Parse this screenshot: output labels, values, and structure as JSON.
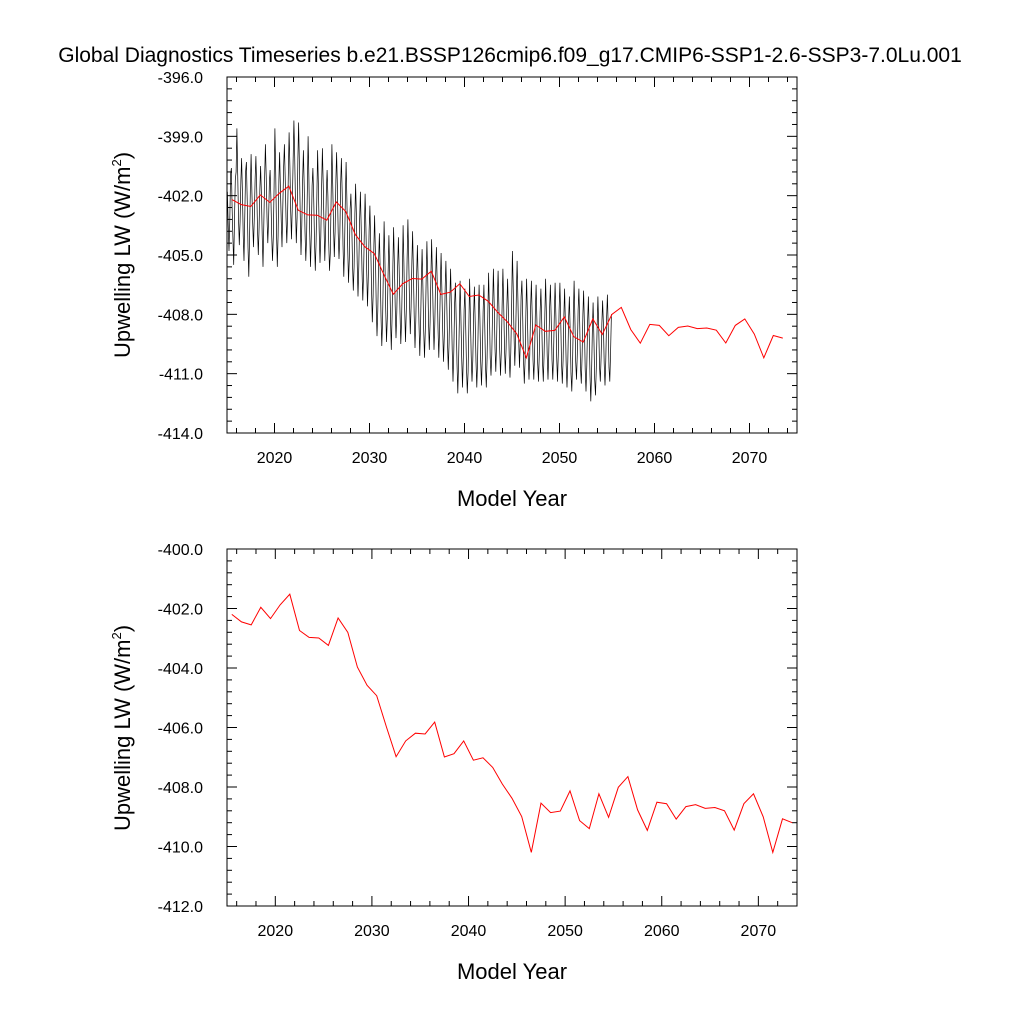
{
  "title": "Global Diagnostics Timeseries b.e21.BSSP126cmip6.f09_g17.CMIP6-SSP1-2.6-SSP3-7.0Lu.001",
  "colors": {
    "monthly": "#000000",
    "annual": "#ff0000",
    "axis": "#000000"
  },
  "chart_data": [
    {
      "type": "line",
      "xlabel": "Model Year",
      "ylabel": {
        "base": "Upwelling LW (W/m",
        "sup": "2",
        "tail": ")"
      },
      "xlim": [
        2015,
        2075
      ],
      "ylim": [
        -414.0,
        -396.0
      ],
      "x_ticks": [
        {
          "value": 2020,
          "label": "2020"
        },
        {
          "value": 2030,
          "label": "2030"
        },
        {
          "value": 2040,
          "label": "2040"
        },
        {
          "value": 2050,
          "label": "2050"
        },
        {
          "value": 2060,
          "label": "2060"
        },
        {
          "value": 2070,
          "label": "2070"
        }
      ],
      "y_ticks": [
        {
          "value": -396.0,
          "label": "-396.0"
        },
        {
          "value": -399.0,
          "label": "-399.0"
        },
        {
          "value": -402.0,
          "label": "-402.0"
        },
        {
          "value": -405.0,
          "label": "-405.0"
        },
        {
          "value": -408.0,
          "label": "-408.0"
        },
        {
          "value": -411.0,
          "label": "-411.0"
        },
        {
          "value": -414.0,
          "label": "-414.0"
        }
      ],
      "series": [
        {
          "kind": "monthly",
          "x_start": 2015.042,
          "x_step": 0.0833333,
          "values": [
            -401.8,
            -403.5,
            -404.8,
            -403.2,
            -400.9,
            -400.6,
            -402.6,
            -404.1,
            -405.5,
            -403.2,
            -401.2,
            -400.8,
            -398.6,
            -400.9,
            -403.1,
            -404.5,
            -403.3,
            -401.2,
            -400.1,
            -401.8,
            -404.0,
            -405.3,
            -403.0,
            -400.8,
            -400.3,
            -402.2,
            -404.6,
            -406.1,
            -404.0,
            -401.5,
            -399.9,
            -401.8,
            -403.4,
            -404.6,
            -403.1,
            -401.2,
            -400.0,
            -401.6,
            -403.7,
            -405.0,
            -403.6,
            -401.6,
            -400.5,
            -401.9,
            -404.0,
            -405.6,
            -403.5,
            -401.2,
            -399.4,
            -401.0,
            -403.1,
            -404.4,
            -403.2,
            -401.3,
            -400.7,
            -402.1,
            -404.0,
            -405.3,
            -404.1,
            -401.5,
            -398.6,
            -400.8,
            -403.8,
            -405.6,
            -404.0,
            -401.2,
            -399.8,
            -401.6,
            -403.2,
            -404.6,
            -402.6,
            -400.6,
            -399.4,
            -401.1,
            -403.1,
            -404.4,
            -403.0,
            -400.7,
            -398.8,
            -400.5,
            -402.8,
            -404.2,
            -402.5,
            -400.3,
            -398.2,
            -400.0,
            -402.5,
            -404.4,
            -403.1,
            -400.1,
            -398.3,
            -400.4,
            -402.9,
            -405.0,
            -403.5,
            -401.3,
            -399.7,
            -401.5,
            -403.8,
            -405.3,
            -404.1,
            -401.5,
            -399.0,
            -401.1,
            -403.8,
            -405.6,
            -404.0,
            -401.5,
            -400.6,
            -402.1,
            -404.3,
            -405.8,
            -404.3,
            -401.9,
            -399.7,
            -401.5,
            -403.8,
            -405.4,
            -404.1,
            -401.6,
            -399.6,
            -401.4,
            -403.5,
            -405.3,
            -403.8,
            -401.7,
            -400.7,
            -402.0,
            -404.3,
            -405.8,
            -404.9,
            -402.2,
            -399.4,
            -401.4,
            -403.5,
            -405.1,
            -403.8,
            -401.2,
            -399.8,
            -401.6,
            -403.9,
            -405.2,
            -404.1,
            -401.5,
            -400.1,
            -401.9,
            -404.5,
            -406.1,
            -404.5,
            -402.0,
            -400.3,
            -402.2,
            -404.6,
            -406.4,
            -405.2,
            -402.7,
            -401.9,
            -403.3,
            -405.4,
            -406.8,
            -405.6,
            -402.9,
            -401.4,
            -403.0,
            -405.4,
            -407.1,
            -405.6,
            -403.3,
            -401.8,
            -403.6,
            -405.8,
            -407.3,
            -405.9,
            -403.6,
            -401.9,
            -403.6,
            -405.8,
            -407.6,
            -406.1,
            -403.8,
            -402.5,
            -404.4,
            -406.6,
            -408.4,
            -407.1,
            -404.5,
            -403.0,
            -404.9,
            -407.5,
            -409.1,
            -407.8,
            -405.3,
            -403.9,
            -405.8,
            -408.1,
            -409.6,
            -408.3,
            -405.6,
            -403.3,
            -405.2,
            -407.7,
            -409.4,
            -408.2,
            -405.9,
            -404.0,
            -405.9,
            -408.2,
            -409.8,
            -408.1,
            -405.5,
            -403.6,
            -405.5,
            -407.6,
            -409.2,
            -407.9,
            -405.7,
            -404.1,
            -405.8,
            -407.9,
            -409.5,
            -408.3,
            -405.9,
            -403.5,
            -405.4,
            -407.8,
            -409.4,
            -407.8,
            -405.2,
            -403.2,
            -405.1,
            -407.4,
            -409.0,
            -407.6,
            -405.3,
            -403.8,
            -405.8,
            -408.1,
            -409.7,
            -408.3,
            -406.1,
            -404.5,
            -406.3,
            -408.5,
            -410.1,
            -408.5,
            -406.2,
            -404.7,
            -406.6,
            -408.8,
            -410.2,
            -408.8,
            -406.4,
            -404.3,
            -406.1,
            -408.3,
            -409.8,
            -408.4,
            -406.1,
            -404.2,
            -406.0,
            -408.1,
            -409.8,
            -408.5,
            -406.2,
            -404.6,
            -406.4,
            -408.7,
            -410.2,
            -408.7,
            -406.3,
            -404.9,
            -406.8,
            -408.8,
            -410.4,
            -409.1,
            -406.8,
            -405.3,
            -407.2,
            -409.4,
            -410.8,
            -409.4,
            -407.1,
            -405.7,
            -407.6,
            -409.8,
            -411.4,
            -409.9,
            -407.5,
            -406.4,
            -408.3,
            -410.5,
            -412.0,
            -410.4,
            -408.2,
            -406.3,
            -408.1,
            -410.2,
            -411.7,
            -410.2,
            -407.8,
            -406.7,
            -408.6,
            -410.7,
            -412.0,
            -410.9,
            -408.5,
            -406.2,
            -408.1,
            -410.1,
            -411.4,
            -410.3,
            -408.1,
            -406.6,
            -408.4,
            -410.4,
            -411.7,
            -410.3,
            -408.0,
            -406.5,
            -408.2,
            -410.4,
            -411.6,
            -410.2,
            -407.9,
            -406.5,
            -408.4,
            -410.6,
            -411.7,
            -410.2,
            -407.8,
            -405.9,
            -407.8,
            -410.2,
            -411.1,
            -410.0,
            -407.7,
            -405.7,
            -407.5,
            -409.7,
            -410.9,
            -409.4,
            -407.2,
            -405.8,
            -407.6,
            -409.8,
            -411.1,
            -409.9,
            -407.6,
            -405.7,
            -407.5,
            -409.7,
            -411.0,
            -409.7,
            -407.5,
            -406.2,
            -407.9,
            -410.1,
            -411.2,
            -409.9,
            -407.7,
            -404.8,
            -406.6,
            -409.0,
            -410.6,
            -409.3,
            -406.9,
            -405.3,
            -407.2,
            -409.3,
            -410.7,
            -409.4,
            -407.1,
            -406.3,
            -408.1,
            -410.3,
            -411.5,
            -410.3,
            -407.9,
            -406.2,
            -408.0,
            -410.1,
            -411.3,
            -410.0,
            -407.7,
            -406.3,
            -408.1,
            -410.3,
            -411.3,
            -410.0,
            -407.8,
            -406.5,
            -408.3,
            -410.5,
            -411.4,
            -410.0,
            -407.9,
            -406.7,
            -408.3,
            -410.4,
            -411.4,
            -410.0,
            -407.9,
            -406.2,
            -408.0,
            -410.1,
            -411.3,
            -409.9,
            -407.7,
            -406.5,
            -408.2,
            -410.3,
            -411.3,
            -409.9,
            -407.8,
            -406.4,
            -408.1,
            -410.2,
            -411.4,
            -410.0,
            -407.8,
            -406.4,
            -408.2,
            -410.4,
            -411.5,
            -410.3,
            -408.0,
            -406.7,
            -408.5,
            -410.6,
            -411.7,
            -410.4,
            -408.2,
            -407.1,
            -408.9,
            -411.0,
            -411.9,
            -410.4,
            -408.0,
            -406.3,
            -408.2,
            -410.4,
            -411.3,
            -410.0,
            -407.8,
            -406.7,
            -408.4,
            -410.7,
            -411.5,
            -410.1,
            -408.0,
            -406.8,
            -408.5,
            -410.8,
            -411.9,
            -410.6,
            -408.4,
            -407.1,
            -408.9,
            -411.1,
            -412.4,
            -410.9,
            -408.7,
            -407.4,
            -409.2,
            -411.3,
            -412.1,
            -410.7,
            -408.7,
            -407.1,
            -408.6,
            -410.6,
            -411.4,
            -410.2,
            -408.4,
            -407.3,
            -408.5,
            -410.5,
            -411.6,
            -410.3,
            -408.2,
            -407.0,
            -408.6,
            -410.7,
            -411.4,
            -409.9,
            -408.0
          ]
        },
        {
          "kind": "annual",
          "x_start": 2015.5,
          "x_step": 1,
          "values": [
            -402.2,
            -402.45,
            -402.55,
            -401.96,
            -402.34,
            -401.88,
            -401.52,
            -402.74,
            -402.97,
            -402.99,
            -403.24,
            -402.32,
            -402.8,
            -403.97,
            -404.58,
            -404.93,
            -405.98,
            -406.98,
            -406.45,
            -406.19,
            -406.22,
            -405.82,
            -406.99,
            -406.88,
            -406.45,
            -407.1,
            -407.02,
            -407.34,
            -407.9,
            -408.38,
            -408.99,
            -410.2,
            -408.54,
            -408.86,
            -408.81,
            -408.13,
            -409.13,
            -409.4,
            -408.23,
            -409.02,
            -408.01,
            -407.65,
            -408.77,
            -409.46,
            -408.51,
            -408.56,
            -409.08,
            -408.66,
            -408.59,
            -408.72,
            -408.69,
            -408.8,
            -409.45,
            -408.56,
            -408.23,
            -409.0,
            -410.2,
            -409.07,
            -409.2
          ]
        }
      ]
    },
    {
      "type": "line",
      "xlabel": "Model Year",
      "ylabel": {
        "base": "Upwelling LW (W/m",
        "sup": "2",
        "tail": ")"
      },
      "xlim": [
        2015,
        2074
      ],
      "ylim": [
        -412.0,
        -400.0
      ],
      "x_ticks": [
        {
          "value": 2020,
          "label": "2020"
        },
        {
          "value": 2030,
          "label": "2030"
        },
        {
          "value": 2040,
          "label": "2040"
        },
        {
          "value": 2050,
          "label": "2050"
        },
        {
          "value": 2060,
          "label": "2060"
        },
        {
          "value": 2070,
          "label": "2070"
        }
      ],
      "y_ticks": [
        {
          "value": -400.0,
          "label": "-400.0"
        },
        {
          "value": -402.0,
          "label": "-402.0"
        },
        {
          "value": -404.0,
          "label": "-404.0"
        },
        {
          "value": -406.0,
          "label": "-406.0"
        },
        {
          "value": -408.0,
          "label": "-408.0"
        },
        {
          "value": -410.0,
          "label": "-410.0"
        },
        {
          "value": -412.0,
          "label": "-412.0"
        }
      ],
      "series": [
        {
          "kind": "annual",
          "x_start": 2015.5,
          "x_step": 1,
          "values": [
            -402.2,
            -402.45,
            -402.55,
            -401.96,
            -402.34,
            -401.88,
            -401.52,
            -402.74,
            -402.97,
            -402.99,
            -403.24,
            -402.32,
            -402.8,
            -403.97,
            -404.58,
            -404.93,
            -405.98,
            -406.98,
            -406.45,
            -406.19,
            -406.22,
            -405.82,
            -406.99,
            -406.88,
            -406.45,
            -407.1,
            -407.02,
            -407.34,
            -407.9,
            -408.38,
            -408.99,
            -410.2,
            -408.54,
            -408.86,
            -408.81,
            -408.13,
            -409.13,
            -409.4,
            -408.23,
            -409.02,
            -408.01,
            -407.65,
            -408.77,
            -409.46,
            -408.51,
            -408.56,
            -409.08,
            -408.66,
            -408.59,
            -408.72,
            -408.69,
            -408.8,
            -409.45,
            -408.56,
            -408.23,
            -409.0,
            -410.2,
            -409.07,
            -409.2
          ]
        }
      ]
    }
  ]
}
